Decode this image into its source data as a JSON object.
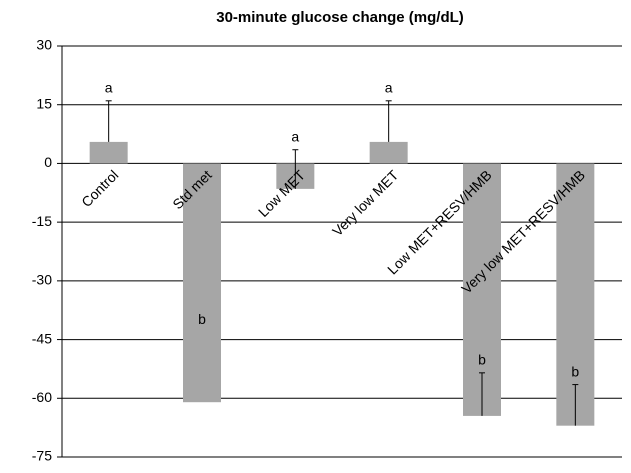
{
  "chart_data": {
    "type": "bar",
    "title": "30-minute glucose change (mg/dL)",
    "categories": [
      "Control",
      "Std met",
      "Low MET",
      "Very low MET",
      "Low MET+RESV/HMB",
      "Very low MET+RESV/HMB"
    ],
    "values": [
      5.5,
      -61,
      -6.5,
      5.5,
      -64.5,
      -67
    ],
    "errors": [
      10.5,
      null,
      10,
      10.5,
      11,
      10.5
    ],
    "letters": [
      "a",
      "b",
      "a",
      "a",
      "b",
      "b"
    ],
    "color": "#a6a6a6",
    "ylim": [
      -75,
      30
    ],
    "yticks": [
      -75,
      -60,
      -45,
      -30,
      -15,
      0,
      15,
      30
    ],
    "grid": true
  }
}
